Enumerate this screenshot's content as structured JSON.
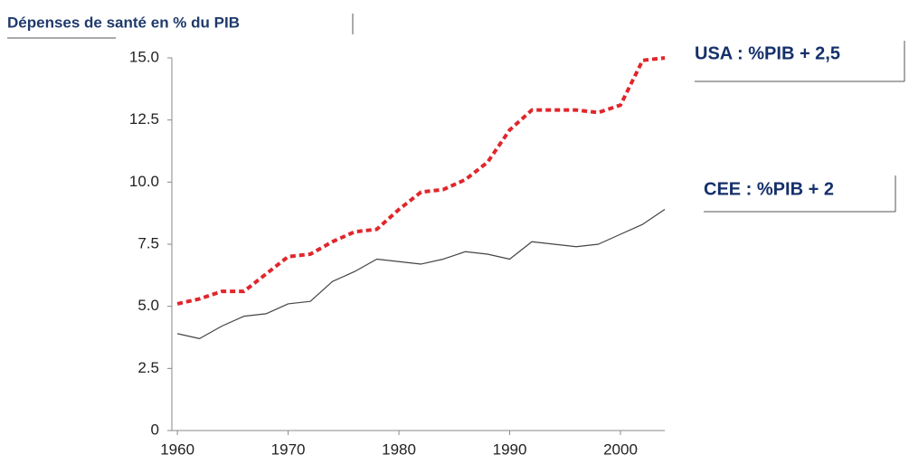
{
  "chart_data": {
    "type": "line",
    "title": "Dépenses de santé en % du PIB",
    "x": [
      1960,
      1962,
      1964,
      1966,
      1968,
      1970,
      1972,
      1974,
      1976,
      1978,
      1980,
      1982,
      1984,
      1986,
      1988,
      1990,
      1992,
      1994,
      1996,
      1998,
      2000,
      2002,
      2004
    ],
    "series": [
      {
        "color": "#e0262b",
        "dash": true,
        "values": [
          5.1,
          5.3,
          5.6,
          5.6,
          6.3,
          7.0,
          7.1,
          7.6,
          8.0,
          8.1,
          8.9,
          9.6,
          9.7,
          10.1,
          10.8,
          12.1,
          12.9,
          12.9,
          12.9,
          12.8,
          13.1,
          14.9,
          15.0
        ]
      },
      {
        "color": "#444444",
        "dash": false,
        "values": [
          3.9,
          3.7,
          4.2,
          4.6,
          4.7,
          5.1,
          5.2,
          6.0,
          6.4,
          6.9,
          6.8,
          6.7,
          6.9,
          7.2,
          7.1,
          6.9,
          7.6,
          7.5,
          7.4,
          7.5,
          7.9,
          8.3,
          8.9
        ]
      }
    ],
    "annotations": [
      "USA : %PIB + 2,5",
      "CEE : %PIB + 2"
    ],
    "xlim": [
      1959.5,
      2004
    ],
    "xticks": [
      1960,
      1970,
      1980,
      1990,
      2000
    ],
    "ylim": [
      0,
      15
    ],
    "yticks": [
      0,
      2.5,
      {
        "value": 5,
        "label": "5.0"
      },
      7.5,
      {
        "value": 10,
        "label": "10.0"
      },
      12.5,
      {
        "value": 15,
        "label": "15.0"
      }
    ],
    "grid": false
  }
}
